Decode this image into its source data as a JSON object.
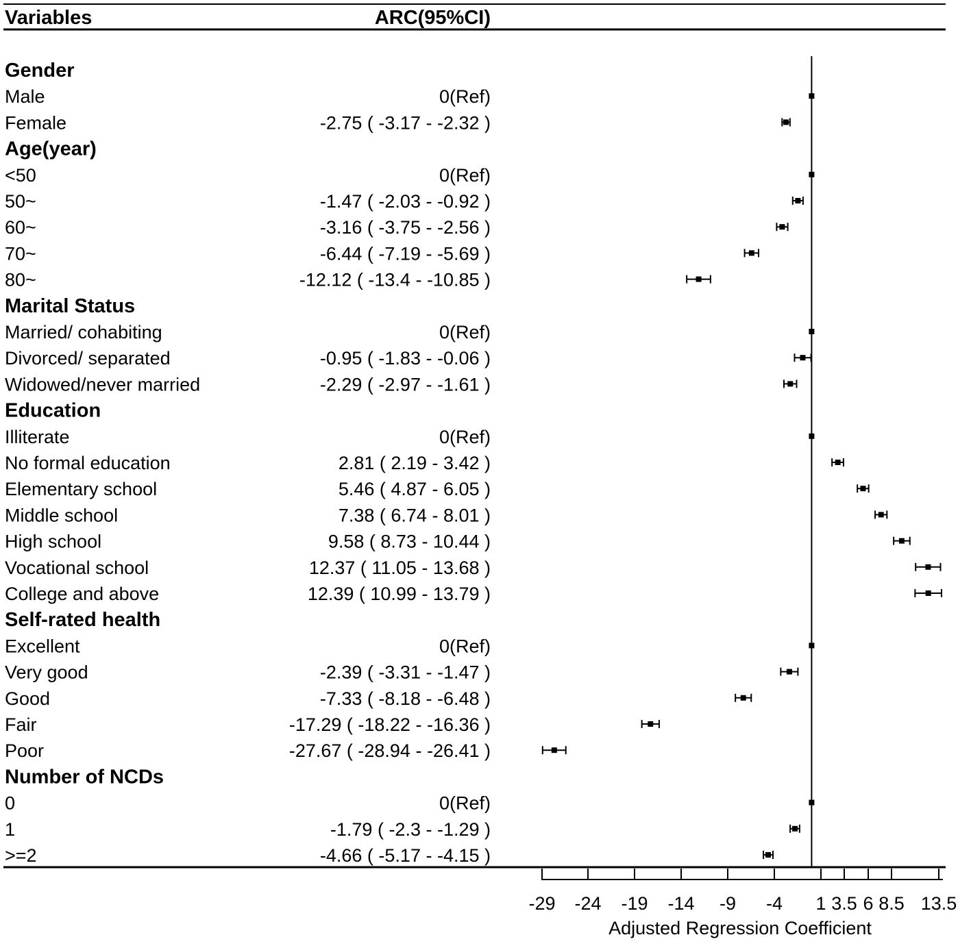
{
  "chart_data": {
    "type": "forest",
    "header": {
      "variables": "Variables",
      "estimate": "ARC(95%CI)"
    },
    "xlabel": "Adjusted Regression Coefficient",
    "reference_line": 0,
    "x_ticks": [
      "-29",
      "-24",
      "-19",
      "-14",
      "-9",
      "-4",
      "1",
      "3.5",
      "6",
      "8.5",
      "13.5"
    ],
    "x_tick_values": [
      -29,
      -24,
      -19,
      -14,
      -9,
      -4,
      1,
      3.5,
      6,
      8.5,
      13.5
    ],
    "xlim": [
      -29,
      13.5
    ],
    "rows": [
      {
        "kind": "group",
        "label": "Gender"
      },
      {
        "kind": "item",
        "label": "Male",
        "text": "0(Ref)",
        "est": 0,
        "lo": 0,
        "hi": 0
      },
      {
        "kind": "item",
        "label": "Female",
        "text": "-2.75 ( -3.17 - -2.32 )",
        "est": -2.75,
        "lo": -3.17,
        "hi": -2.32
      },
      {
        "kind": "group",
        "label": "Age(year)"
      },
      {
        "kind": "item",
        "label": "<50",
        "text": "0(Ref)",
        "est": 0,
        "lo": 0,
        "hi": 0
      },
      {
        "kind": "item",
        "label": "50~",
        "text": "-1.47 ( -2.03 - -0.92 )",
        "est": -1.47,
        "lo": -2.03,
        "hi": -0.92
      },
      {
        "kind": "item",
        "label": "60~",
        "text": "-3.16 ( -3.75 - -2.56 )",
        "est": -3.16,
        "lo": -3.75,
        "hi": -2.56
      },
      {
        "kind": "item",
        "label": "70~",
        "text": "-6.44 ( -7.19 - -5.69 )",
        "est": -6.44,
        "lo": -7.19,
        "hi": -5.69
      },
      {
        "kind": "item",
        "label": "80~",
        "text": "-12.12 ( -13.4 - -10.85 )",
        "est": -12.12,
        "lo": -13.4,
        "hi": -10.85
      },
      {
        "kind": "group",
        "label": "Marital Status"
      },
      {
        "kind": "item",
        "label": "Married/ cohabiting",
        "text": "0(Ref)",
        "est": 0,
        "lo": 0,
        "hi": 0
      },
      {
        "kind": "item",
        "label": "Divorced/ separated",
        "text": "-0.95 ( -1.83 - -0.06 )",
        "est": -0.95,
        "lo": -1.83,
        "hi": -0.06
      },
      {
        "kind": "item",
        "label": "Widowed/never married",
        "text": "-2.29 ( -2.97 - -1.61 )",
        "est": -2.29,
        "lo": -2.97,
        "hi": -1.61
      },
      {
        "kind": "group",
        "label": "Education"
      },
      {
        "kind": "item",
        "label": "Illiterate",
        "text": "0(Ref)",
        "est": 0,
        "lo": 0,
        "hi": 0
      },
      {
        "kind": "item",
        "label": "No formal education",
        "text": "2.81 ( 2.19 - 3.42 )",
        "est": 2.81,
        "lo": 2.19,
        "hi": 3.42
      },
      {
        "kind": "item",
        "label": "Elementary school",
        "text": "5.46 ( 4.87 - 6.05 )",
        "est": 5.46,
        "lo": 4.87,
        "hi": 6.05
      },
      {
        "kind": "item",
        "label": "Middle school",
        "text": "7.38 ( 6.74 - 8.01 )",
        "est": 7.38,
        "lo": 6.74,
        "hi": 8.01
      },
      {
        "kind": "item",
        "label": "High school",
        "text": "9.58 ( 8.73 - 10.44 )",
        "est": 9.58,
        "lo": 8.73,
        "hi": 10.44
      },
      {
        "kind": "item",
        "label": "Vocational school",
        "text": "12.37 ( 11.05 - 13.68 )",
        "est": 12.37,
        "lo": 11.05,
        "hi": 13.68
      },
      {
        "kind": "item",
        "label": "College and above",
        "text": "12.39 ( 10.99 - 13.79 )",
        "est": 12.39,
        "lo": 10.99,
        "hi": 13.79
      },
      {
        "kind": "group",
        "label": "Self-rated health"
      },
      {
        "kind": "item",
        "label": "Excellent",
        "text": "0(Ref)",
        "est": 0,
        "lo": 0,
        "hi": 0
      },
      {
        "kind": "item",
        "label": "Very good",
        "text": "-2.39 ( -3.31 - -1.47 )",
        "est": -2.39,
        "lo": -3.31,
        "hi": -1.47
      },
      {
        "kind": "item",
        "label": "Good",
        "text": "-7.33 ( -8.18 - -6.48 )",
        "est": -7.33,
        "lo": -8.18,
        "hi": -6.48
      },
      {
        "kind": "item",
        "label": "Fair",
        "text": "-17.29 ( -18.22 - -16.36 )",
        "est": -17.29,
        "lo": -18.22,
        "hi": -16.36
      },
      {
        "kind": "item",
        "label": "Poor",
        "text": "-27.67 ( -28.94 - -26.41 )",
        "est": -27.67,
        "lo": -28.94,
        "hi": -26.41
      },
      {
        "kind": "group",
        "label": "Number of NCDs"
      },
      {
        "kind": "item",
        "label": "0",
        "text": "0(Ref)",
        "est": 0,
        "lo": 0,
        "hi": 0
      },
      {
        "kind": "item",
        "label": "1",
        "text": "-1.79 ( -2.3 - -1.29 )",
        "est": -1.79,
        "lo": -2.3,
        "hi": -1.29
      },
      {
        "kind": "item",
        "label": ">=2",
        "text": "-4.66 ( -5.17 - -4.15 )",
        "est": -4.66,
        "lo": -5.17,
        "hi": -4.15
      }
    ]
  }
}
